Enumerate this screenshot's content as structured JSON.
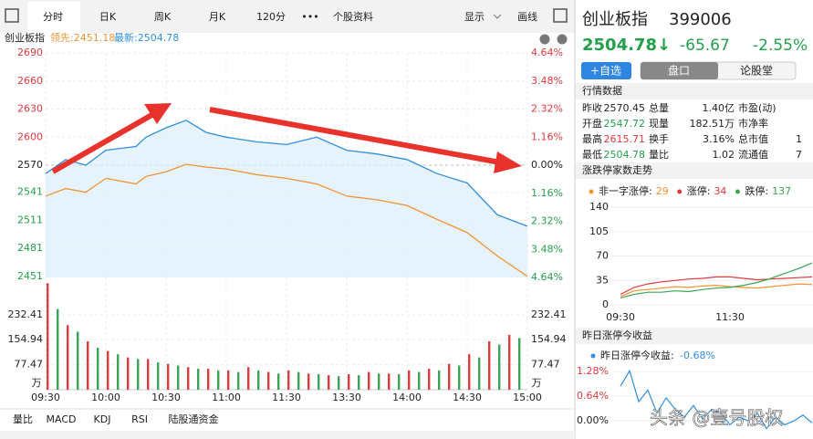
{
  "tabs": {
    "items": [
      "分时",
      "日K",
      "周K",
      "月K",
      "120分",
      "•••",
      "个股资料"
    ],
    "right": [
      "显示",
      "画线"
    ]
  },
  "chart_header": {
    "name": "创业板指",
    "lead": "领先:2451.18",
    "last": "最新:2504.78"
  },
  "price_chart": {
    "type": "line",
    "x": [
      0,
      10,
      20,
      30,
      45,
      50,
      60,
      70,
      80,
      90,
      105,
      120,
      135,
      150,
      165,
      180,
      195,
      210,
      225,
      240
    ],
    "series": [
      {
        "color": "#2f8ee0",
        "fill": true,
        "values": [
          2561,
          2576,
          2570,
          2586,
          2590,
          2600,
          2610,
          2618,
          2605,
          2600,
          2595,
          2592,
          2600,
          2586,
          2582,
          2576,
          2561,
          2551,
          2517,
          2504.78
        ]
      },
      {
        "color": "#ef9433",
        "fill": false,
        "values": [
          2537,
          2545,
          2541,
          2556,
          2550,
          2558,
          2563,
          2571,
          2568,
          2566,
          2560,
          2556,
          2550,
          2537,
          2533,
          2527,
          2512,
          2498,
          2473,
          2451.18
        ]
      }
    ],
    "xlim": [
      0,
      240
    ],
    "xticks": [
      {
        "value": 0,
        "label": "09:30"
      },
      {
        "value": 30,
        "label": "10:00"
      },
      {
        "value": 60,
        "label": "10:30"
      },
      {
        "value": 90,
        "label": "11:00"
      },
      {
        "value": 120,
        "label": "11:30"
      },
      {
        "value": 150,
        "label": "13:30"
      },
      {
        "value": 180,
        "label": "14:00"
      },
      {
        "value": 210,
        "label": "14:30"
      },
      {
        "value": 240,
        "label": "15:00"
      }
    ],
    "ylim": [
      2450,
      2690
    ],
    "yticks": [
      2690,
      2660,
      2630,
      2600,
      2570,
      2541,
      2511,
      2481,
      2451
    ],
    "y2lim": [
      -4.64,
      4.64
    ],
    "y2ticks": [
      {
        "value": 4.64,
        "label": "4.64%"
      },
      {
        "value": 3.48,
        "label": "3.48%"
      },
      {
        "value": 2.32,
        "label": "2.32%"
      },
      {
        "value": 1.16,
        "label": "1.16%"
      },
      {
        "value": 0,
        "label": "0.00%"
      },
      {
        "value": -1.16,
        "label": "1.16%"
      },
      {
        "value": -2.32,
        "label": "2.32%"
      },
      {
        "value": -3.48,
        "label": "3.48%"
      },
      {
        "value": -4.64,
        "label": "4.64%"
      }
    ],
    "grid": true
  },
  "volume_chart": {
    "type": "bar",
    "unit": "万",
    "ylim": [
      0,
      331
    ],
    "yticks": [
      232.41,
      154.94,
      77.47
    ],
    "series": [
      {
        "color": "#e0393e",
        "x": [
          1,
          11,
          21,
          31,
          41,
          51,
          61,
          71,
          81,
          91,
          101,
          111,
          121,
          131,
          141,
          151,
          161,
          171,
          181,
          191,
          201,
          211,
          221,
          231
        ],
        "values": [
          330,
          200,
          150,
          120,
          100,
          95,
          80,
          70,
          65,
          60,
          70,
          55,
          60,
          50,
          45,
          48,
          55,
          50,
          60,
          65,
          80,
          110,
          150,
          170
        ]
      },
      {
        "color": "#3aa655",
        "x": [
          6,
          16,
          26,
          36,
          46,
          56,
          66,
          76,
          86,
          96,
          106,
          116,
          126,
          136,
          146,
          156,
          166,
          176,
          186,
          196,
          206,
          216,
          226,
          236
        ],
        "values": [
          250,
          180,
          130,
          110,
          95,
          85,
          75,
          65,
          60,
          55,
          60,
          50,
          55,
          48,
          42,
          45,
          50,
          48,
          55,
          60,
          75,
          100,
          140,
          160
        ]
      }
    ]
  },
  "bottom_tabs": [
    "量比",
    "MACD",
    "KDJ",
    "RSI",
    "陆股通资金"
  ],
  "quote": {
    "name": "创业板指",
    "code": "399006",
    "price": "2504.78↓",
    "change": "-65.67",
    "change_pct": "-2.55%"
  },
  "buttons": [
    "+自选",
    "盘口",
    "论股堂"
  ],
  "market_data": {
    "title": "行情数据",
    "rows": [
      [
        "昨收",
        "2570.45",
        "总量",
        "1.40亿",
        "市盈(动)"
      ],
      [
        "开盘",
        "2547.72",
        "现量",
        "182.51万",
        "市净率"
      ],
      [
        "最高",
        "2615.71",
        "换手",
        "3.16%",
        "总市值",
        "1"
      ],
      [
        "最低",
        "2504.78",
        "量比",
        "1.02",
        "流通值",
        "7"
      ]
    ]
  },
  "limit_chart": {
    "type": "line",
    "title": "涨跌停家数走势",
    "x": [
      0,
      15,
      30,
      45,
      60,
      75,
      90,
      105,
      120,
      135,
      150,
      165,
      180,
      195,
      210
    ],
    "series": [
      {
        "name": "非一字涨停:",
        "count": 29,
        "color": "#ef9433",
        "values": [
          12,
          20,
          22,
          24,
          26,
          25,
          27,
          28,
          26,
          25,
          24,
          26,
          28,
          30,
          29
        ]
      },
      {
        "name": "涨停:",
        "count": 34,
        "color": "#e0393e",
        "values": [
          15,
          25,
          30,
          33,
          35,
          37,
          38,
          40,
          40,
          38,
          36,
          37,
          38,
          39,
          40
        ]
      },
      {
        "name": "跌停:",
        "count": 137,
        "color": "#3aa655",
        "values": [
          10,
          15,
          18,
          18,
          20,
          19,
          22,
          24,
          25,
          28,
          32,
          38,
          45,
          52,
          60
        ]
      }
    ],
    "xlim": [
      -10,
      211
    ],
    "xticks": [
      {
        "value": 0,
        "label": "09:30"
      },
      {
        "value": 120,
        "label": "11:30"
      }
    ],
    "ylim": [
      0,
      140
    ],
    "yticks": [
      140,
      105,
      70,
      35,
      0
    ]
  },
  "return_chart": {
    "type": "line",
    "title": "昨日涨停今收益",
    "legend": "昨日涨停今收益:",
    "legend_value": "-0.68%",
    "x": [
      0,
      10,
      20,
      30,
      40,
      50,
      60,
      70,
      80,
      90,
      100,
      110,
      120,
      130,
      140,
      150,
      160,
      170,
      180,
      190,
      200,
      210
    ],
    "series": [
      {
        "color": "#2f8ee0",
        "values": [
          0.9,
          1.3,
          0.5,
          0.8,
          0.2,
          0.6,
          0.3,
          0.1,
          0.4,
          0.05,
          0.3,
          0.2,
          -0.1,
          0.1,
          0,
          0.2,
          -0.2,
          0.1,
          -0.1,
          0,
          0.15,
          -0.05
        ]
      }
    ],
    "xlim": [
      -8,
      211
    ],
    "ylim": [
      -0.47,
      1.45
    ],
    "yticks": [
      {
        "value": 1.28,
        "label": "1.28%"
      },
      {
        "value": 0.64,
        "label": "0.64%"
      },
      {
        "value": 0,
        "label": "0.00%"
      }
    ]
  },
  "watermark": "头条 @壹号股权"
}
